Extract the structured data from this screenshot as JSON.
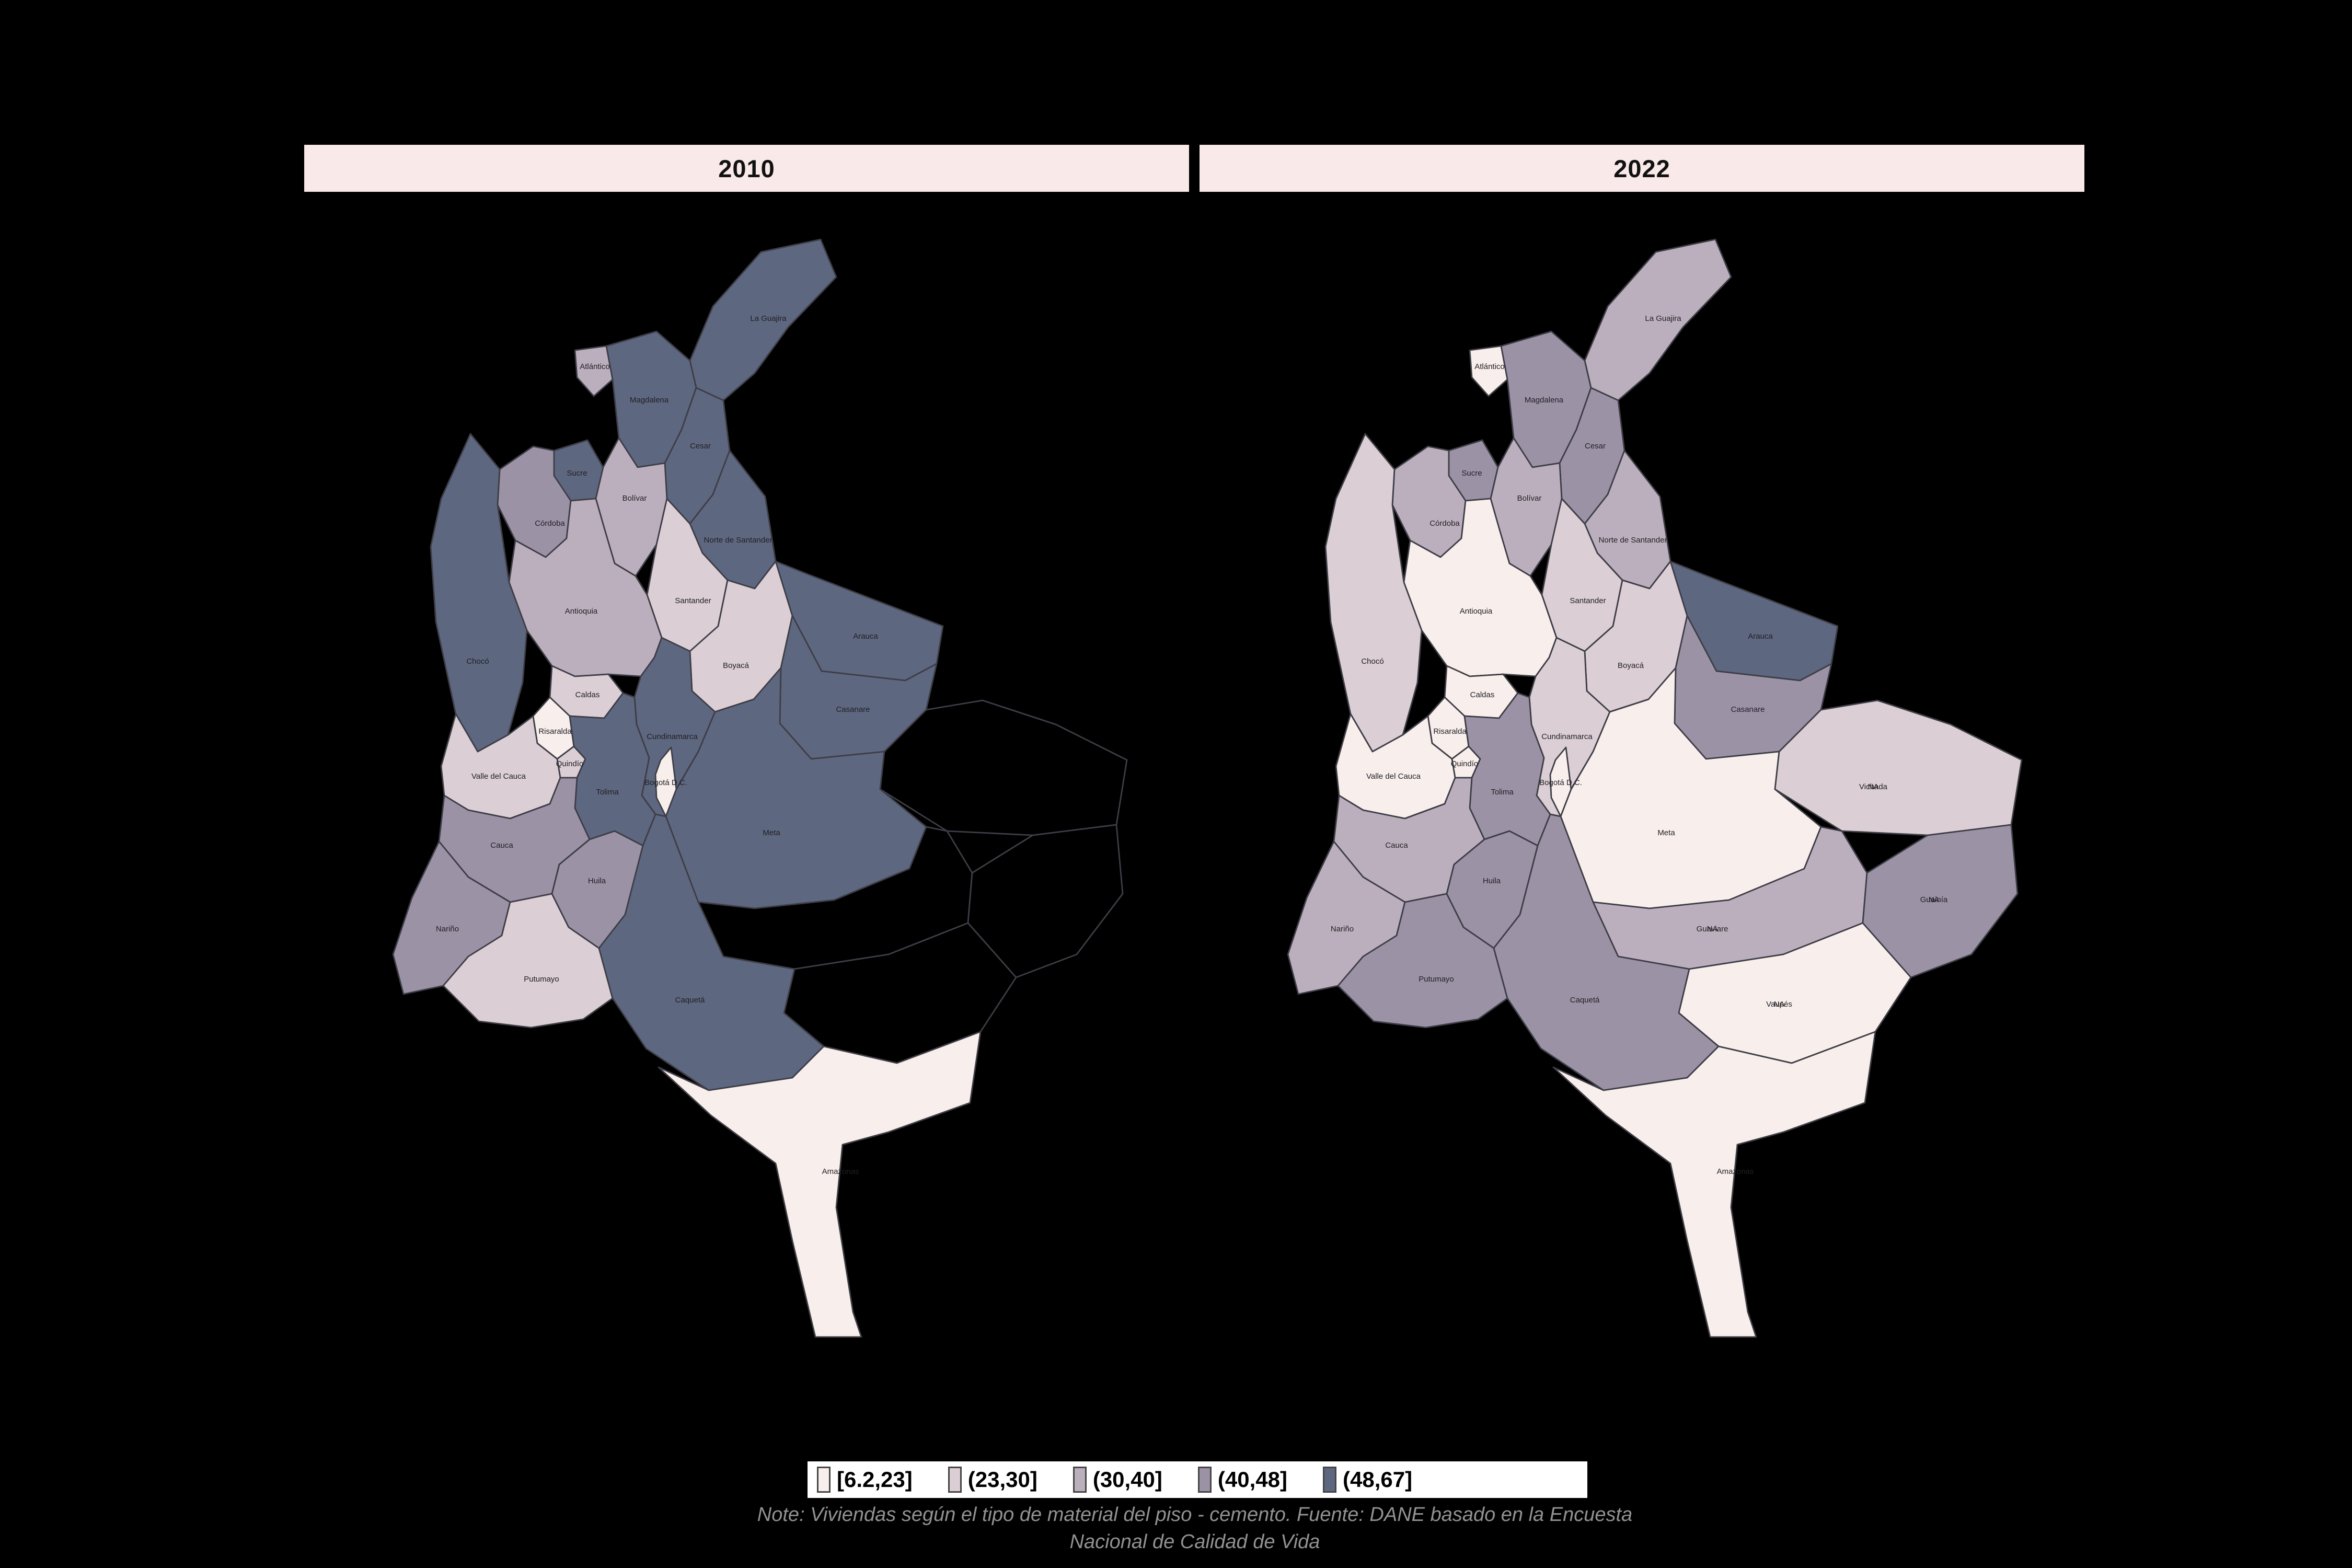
{
  "background_color": "#000000",
  "panels": [
    {
      "year": "2010"
    },
    {
      "year": "2022"
    }
  ],
  "panel_header": {
    "bg_color": "#f9e9e9",
    "text_color": "#111111"
  },
  "legend": {
    "bins": [
      {
        "label": "[6.2,23]",
        "color": "#f8eeec"
      },
      {
        "label": "(23,30]",
        "color": "#dbced5"
      },
      {
        "label": "(30,40]",
        "color": "#bcafbd"
      },
      {
        "label": "(40,48]",
        "color": "#9b92a6"
      },
      {
        "label": "(48,67]",
        "color": "#5e6780"
      }
    ]
  },
  "note": {
    "line1": "Note: Viviendas según el tipo de material del piso - cemento. Fuente: DANE basado en la Encuesta",
    "line2": "Nacional de Calidad de Vida"
  },
  "chart_data": {
    "type": "choropleth",
    "region": "Colombia - departamentos",
    "panel_titles": [
      "2010",
      "2022"
    ],
    "measure": "Viviendas según el tipo de material del piso - cemento",
    "source": "DANE basado en la Encuesta Nacional de Calidad de Vida",
    "legend_bins": [
      "[6.2,23]",
      "(23,30]",
      "(30,40]",
      "(40,48]",
      "(48,67]"
    ],
    "na_fill": "#000000",
    "na_label": "NA",
    "departments": [
      {
        "name": "La Guajira",
        "y2010": "(48,67]",
        "y2022": "(30,40]",
        "na_overlay": false
      },
      {
        "name": "Magdalena",
        "y2010": "(48,67]",
        "y2022": "(40,48]",
        "na_overlay": false
      },
      {
        "name": "Atlántico",
        "y2010": "(30,40]",
        "y2022": "[6.2,23]",
        "na_overlay": false
      },
      {
        "name": "Cesar",
        "y2010": "(48,67]",
        "y2022": "(40,48]",
        "na_overlay": false
      },
      {
        "name": "Sucre",
        "y2010": "(48,67]",
        "y2022": "(40,48]",
        "na_overlay": false
      },
      {
        "name": "Bolívar",
        "y2010": "(30,40]",
        "y2022": "(30,40]",
        "na_overlay": false
      },
      {
        "name": "Córdoba",
        "y2010": "(40,48]",
        "y2022": "(30,40]",
        "na_overlay": false
      },
      {
        "name": "Norte de Santander",
        "y2010": "(48,67]",
        "y2022": "(30,40]",
        "na_overlay": false
      },
      {
        "name": "Santander",
        "y2010": "(23,30]",
        "y2022": "(23,30]",
        "na_overlay": false
      },
      {
        "name": "Antioquia",
        "y2010": "(30,40]",
        "y2022": "[6.2,23]",
        "na_overlay": false
      },
      {
        "name": "Chocó",
        "y2010": "(48,67]",
        "y2022": "(23,30]",
        "na_overlay": false
      },
      {
        "name": "Boyacá",
        "y2010": "(23,30]",
        "y2022": "(23,30]",
        "na_overlay": false
      },
      {
        "name": "Arauca",
        "y2010": "(48,67]",
        "y2022": "(48,67]",
        "na_overlay": false
      },
      {
        "name": "Casanare",
        "y2010": "(48,67]",
        "y2022": "(40,48]",
        "na_overlay": false
      },
      {
        "name": "Caldas",
        "y2010": "(23,30]",
        "y2022": "[6.2,23]",
        "na_overlay": false
      },
      {
        "name": "Risaralda",
        "y2010": "[6.2,23]",
        "y2022": "[6.2,23]",
        "na_overlay": false
      },
      {
        "name": "Quindío",
        "y2010": "(23,30]",
        "y2022": "[6.2,23]",
        "na_overlay": false
      },
      {
        "name": "Cundinamarca",
        "y2010": "(48,67]",
        "y2022": "(23,30]",
        "na_overlay": false
      },
      {
        "name": "Bogotá D.C.",
        "y2010": "[6.2,23]",
        "y2022": "[6.2,23]",
        "na_overlay": false
      },
      {
        "name": "Tolima",
        "y2010": "(48,67]",
        "y2022": "(40,48]",
        "na_overlay": false
      },
      {
        "name": "Valle del Cauca",
        "y2010": "(23,30]",
        "y2022": "[6.2,23]",
        "na_overlay": false
      },
      {
        "name": "Cauca",
        "y2010": "(40,48]",
        "y2022": "(30,40]",
        "na_overlay": false
      },
      {
        "name": "Nariño",
        "y2010": "(40,48]",
        "y2022": "(30,40]",
        "na_overlay": false
      },
      {
        "name": "Putumayo",
        "y2010": "(23,30]",
        "y2022": "(40,48]",
        "na_overlay": false
      },
      {
        "name": "Huila",
        "y2010": "(40,48]",
        "y2022": "(40,48]",
        "na_overlay": false
      },
      {
        "name": "Meta",
        "y2010": "(48,67]",
        "y2022": "[6.2,23]",
        "na_overlay": false
      },
      {
        "name": "Vichada",
        "y2010": "NA",
        "y2022": "(23,30]",
        "na_overlay": true
      },
      {
        "name": "Guaviare",
        "y2010": "NA",
        "y2022": "(30,40]",
        "na_overlay": true
      },
      {
        "name": "Guainía",
        "y2010": "NA",
        "y2022": "(40,48]",
        "na_overlay": true
      },
      {
        "name": "Vaupés",
        "y2010": "NA",
        "y2022": "[6.2,23]",
        "na_overlay": true
      },
      {
        "name": "Caquetá",
        "y2010": "(48,67]",
        "y2022": "(40,48]",
        "na_overlay": false
      },
      {
        "name": "Amazonas",
        "y2010": "[6.2,23]",
        "y2022": "[6.2,23]",
        "na_overlay": false
      }
    ]
  }
}
